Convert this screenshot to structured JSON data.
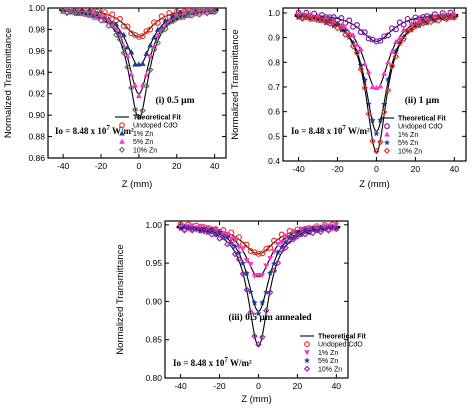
{
  "chart_data": [
    {
      "type": "scatter",
      "panel_label": "(i) 0.5 µm",
      "intensity_label": "Io = 8.48 x 10^7 W/m²",
      "xlabel": "Z (mm)",
      "ylabel": "Normalized Transmittance",
      "xlim": [
        -48,
        46
      ],
      "ylim": [
        0.86,
        1.0
      ],
      "x_ticks": [
        "-40",
        "-20",
        "0",
        "20",
        "40"
      ],
      "y_ticks": [
        "0.86",
        "0.88",
        "0.90",
        "0.92",
        "0.94",
        "0.96",
        "0.98",
        "1.00"
      ],
      "legend": {
        "position": "bottom-right",
        "fit_label": "Theoretical Fit"
      },
      "series": [
        {
          "name": "Undoped CdO",
          "marker": "circle",
          "color": "#e8392b",
          "depth": 0.027,
          "width": 9
        },
        {
          "name": "1% Zn",
          "marker": "triangle",
          "color": "#1f3a93",
          "depth": 0.054,
          "width": 8
        },
        {
          "name": "5% Zn",
          "marker": "triangle",
          "color": "#ff33cc",
          "depth": 0.08,
          "width": 7
        },
        {
          "name": "10% Zn",
          "marker": "diamond",
          "color": "#707070",
          "depth": 0.103,
          "width": 6.5
        }
      ]
    },
    {
      "type": "scatter",
      "panel_label": "(ii) 1 µm",
      "intensity_label": "Io = 8.48 x 10^7 W/m²",
      "xlabel": "Z (mm)",
      "ylabel": "Normalized Transmittance",
      "xlim": [
        -48,
        46
      ],
      "ylim": [
        0.4,
        1.02
      ],
      "x_ticks": [
        "-40",
        "-20",
        "0",
        "20",
        "40"
      ],
      "y_ticks": [
        "0.4",
        "0.5",
        "0.6",
        "0.7",
        "0.8",
        "0.9",
        "1.0"
      ],
      "legend": {
        "position": "bottom-right",
        "fit_label": "Theoretical Fit"
      },
      "series": [
        {
          "name": "Undoped CdO",
          "marker": "circle",
          "color": "#7b1fa2",
          "depth": 0.115,
          "width": 10
        },
        {
          "name": "1% Zn",
          "marker": "triangle",
          "color": "#ff33cc",
          "depth": 0.31,
          "width": 8
        },
        {
          "name": "5% Zn",
          "marker": "star",
          "color": "#1f3a93",
          "depth": 0.48,
          "width": 7
        },
        {
          "name": "10% Zn",
          "marker": "diamond",
          "color": "#e8392b",
          "depth": 0.565,
          "width": 6.5
        }
      ]
    },
    {
      "type": "scatter",
      "panel_label": "(iii) 0.5 µm annealed",
      "intensity_label": "Io = 8.48 x 10^7 W/m²",
      "xlabel": "Z (mm)",
      "ylabel": "Normalized Transmittance",
      "xlim": [
        -48,
        46
      ],
      "ylim": [
        0.8,
        1.005
      ],
      "x_ticks": [
        "-40",
        "-20",
        "0",
        "20",
        "40"
      ],
      "y_ticks": [
        "0.80",
        "0.85",
        "0.90",
        "0.95",
        "1.00"
      ],
      "legend": {
        "position": "bottom-right",
        "fit_label": "Theoretical Fit"
      },
      "series": [
        {
          "name": "Undoped CdO",
          "marker": "circle",
          "color": "#e8392b",
          "depth": 0.038,
          "width": 10
        },
        {
          "name": "1% Zn",
          "marker": "triangle-down",
          "color": "#ff33cc",
          "depth": 0.068,
          "width": 8
        },
        {
          "name": "5% Zn",
          "marker": "star",
          "color": "#1f3a93",
          "depth": 0.113,
          "width": 7
        },
        {
          "name": "10% Zn",
          "marker": "diamond",
          "color": "#9c27b0",
          "depth": 0.158,
          "width": 6.5
        }
      ]
    }
  ]
}
